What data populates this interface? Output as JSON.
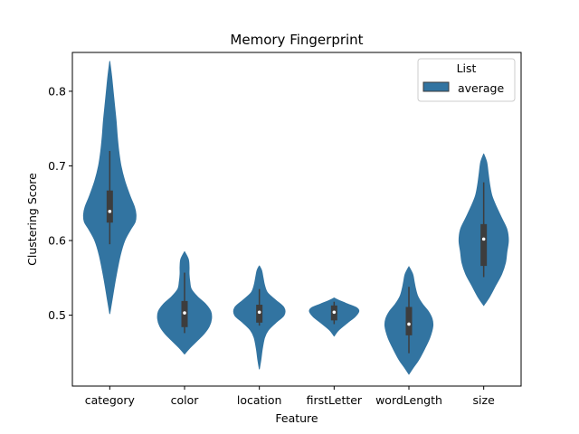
{
  "chart_data": {
    "type": "violin",
    "title": "Memory Fingerprint",
    "xlabel": "Feature",
    "ylabel": "Clustering Score",
    "categories": [
      "category",
      "color",
      "location",
      "firstLetter",
      "wordLength",
      "size"
    ],
    "ylim": [
      0.405,
      0.852
    ],
    "yticks": [
      0.5,
      0.6,
      0.7,
      0.8
    ],
    "ytick_labels": [
      "0.5",
      "0.6",
      "0.7",
      "0.8"
    ],
    "grid": false,
    "legend": {
      "title": "List",
      "placement": "top-right",
      "entries": [
        "average"
      ]
    },
    "series": [
      {
        "name": "average",
        "color": "#3274a1",
        "violins": [
          {
            "min": 0.502,
            "max": 0.84,
            "whisker_low": 0.595,
            "whisker_high": 0.72,
            "q1": 0.624,
            "median": 0.639,
            "q3": 0.667,
            "profile": [
              [
                0.502,
                0.0
              ],
              [
                0.52,
                0.03
              ],
              [
                0.55,
                0.08
              ],
              [
                0.58,
                0.14
              ],
              [
                0.6,
                0.2
              ],
              [
                0.615,
                0.28
              ],
              [
                0.625,
                0.34
              ],
              [
                0.635,
                0.35
              ],
              [
                0.645,
                0.33
              ],
              [
                0.66,
                0.27
              ],
              [
                0.68,
                0.2
              ],
              [
                0.7,
                0.15
              ],
              [
                0.72,
                0.12
              ],
              [
                0.74,
                0.1
              ],
              [
                0.76,
                0.085
              ],
              [
                0.78,
                0.065
              ],
              [
                0.8,
                0.045
              ],
              [
                0.82,
                0.025
              ],
              [
                0.84,
                0.0
              ]
            ]
          },
          {
            "min": 0.448,
            "max": 0.585,
            "whisker_low": 0.476,
            "whisker_high": 0.557,
            "q1": 0.484,
            "median": 0.503,
            "q3": 0.519,
            "profile": [
              [
                0.448,
                0.0
              ],
              [
                0.455,
                0.06
              ],
              [
                0.465,
                0.16
              ],
              [
                0.475,
                0.26
              ],
              [
                0.485,
                0.33
              ],
              [
                0.495,
                0.36
              ],
              [
                0.505,
                0.35
              ],
              [
                0.515,
                0.28
              ],
              [
                0.525,
                0.17
              ],
              [
                0.535,
                0.09
              ],
              [
                0.545,
                0.07
              ],
              [
                0.555,
                0.06
              ],
              [
                0.565,
                0.06
              ],
              [
                0.575,
                0.05
              ],
              [
                0.585,
                0.0
              ]
            ]
          },
          {
            "min": 0.428,
            "max": 0.566,
            "whisker_low": 0.486,
            "whisker_high": 0.535,
            "q1": 0.49,
            "median": 0.504,
            "q3": 0.514,
            "profile": [
              [
                0.428,
                0.0
              ],
              [
                0.44,
                0.02
              ],
              [
                0.455,
                0.04
              ],
              [
                0.47,
                0.07
              ],
              [
                0.48,
                0.12
              ],
              [
                0.49,
                0.22
              ],
              [
                0.5,
                0.33
              ],
              [
                0.51,
                0.33
              ],
              [
                0.52,
                0.22
              ],
              [
                0.53,
                0.11
              ],
              [
                0.54,
                0.07
              ],
              [
                0.55,
                0.05
              ],
              [
                0.56,
                0.03
              ],
              [
                0.566,
                0.0
              ]
            ]
          },
          {
            "min": 0.472,
            "max": 0.523,
            "whisker_low": 0.488,
            "whisker_high": 0.518,
            "q1": 0.493,
            "median": 0.504,
            "q3": 0.513,
            "profile": [
              [
                0.472,
                0.0
              ],
              [
                0.48,
                0.06
              ],
              [
                0.49,
                0.18
              ],
              [
                0.498,
                0.28
              ],
              [
                0.505,
                0.33
              ],
              [
                0.51,
                0.3
              ],
              [
                0.515,
                0.18
              ],
              [
                0.52,
                0.06
              ],
              [
                0.523,
                0.0
              ]
            ]
          },
          {
            "min": 0.421,
            "max": 0.565,
            "whisker_low": 0.449,
            "whisker_high": 0.538,
            "q1": 0.473,
            "median": 0.488,
            "q3": 0.511,
            "profile": [
              [
                0.421,
                0.0
              ],
              [
                0.43,
                0.06
              ],
              [
                0.44,
                0.13
              ],
              [
                0.455,
                0.21
              ],
              [
                0.47,
                0.28
              ],
              [
                0.485,
                0.32
              ],
              [
                0.495,
                0.31
              ],
              [
                0.505,
                0.26
              ],
              [
                0.515,
                0.18
              ],
              [
                0.525,
                0.12
              ],
              [
                0.535,
                0.09
              ],
              [
                0.545,
                0.07
              ],
              [
                0.555,
                0.05
              ],
              [
                0.565,
                0.0
              ]
            ]
          },
          {
            "min": 0.513,
            "max": 0.716,
            "whisker_low": 0.551,
            "whisker_high": 0.678,
            "q1": 0.566,
            "median": 0.602,
            "q3": 0.622,
            "profile": [
              [
                0.513,
                0.0
              ],
              [
                0.525,
                0.08
              ],
              [
                0.54,
                0.16
              ],
              [
                0.555,
                0.24
              ],
              [
                0.57,
                0.29
              ],
              [
                0.585,
                0.31
              ],
              [
                0.6,
                0.33
              ],
              [
                0.615,
                0.31
              ],
              [
                0.63,
                0.24
              ],
              [
                0.645,
                0.17
              ],
              [
                0.66,
                0.11
              ],
              [
                0.675,
                0.08
              ],
              [
                0.69,
                0.06
              ],
              [
                0.705,
                0.04
              ],
              [
                0.716,
                0.0
              ]
            ]
          }
        ]
      }
    ]
  }
}
